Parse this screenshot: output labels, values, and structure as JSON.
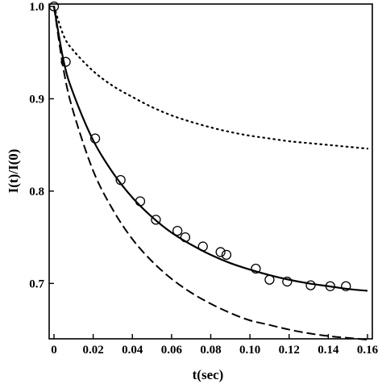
{
  "chart_data": {
    "type": "line",
    "title": "",
    "xlabel": "t(sec)",
    "ylabel": "I(t)/I(0)",
    "xlim": [
      0,
      0.16
    ],
    "ylim": [
      0.64,
      1.0
    ],
    "x_ticks": [
      0,
      0.02,
      0.04,
      0.06,
      0.08,
      0.1,
      0.12,
      0.14,
      0.16
    ],
    "x_tick_labels": [
      "0",
      "0.02",
      "0.04",
      "0.06",
      "0.08",
      "0.10",
      "0.12",
      "0.14",
      "0.16"
    ],
    "y_ticks": [
      0.7,
      0.8,
      0.9,
      1.0
    ],
    "y_tick_labels": [
      "0.7",
      "0.8",
      "0.9",
      "1.0"
    ],
    "grid": false,
    "legend": "none",
    "series": [
      {
        "style": "markers",
        "marker": "open-circle",
        "color": "#000000",
        "x": [
          0.0,
          0.006,
          0.021,
          0.034,
          0.044,
          0.052,
          0.063,
          0.067,
          0.076,
          0.085,
          0.088,
          0.103,
          0.11,
          0.119,
          0.131,
          0.141,
          0.149
        ],
        "y": [
          1.0,
          0.94,
          0.857,
          0.812,
          0.789,
          0.769,
          0.757,
          0.75,
          0.74,
          0.734,
          0.731,
          0.716,
          0.704,
          0.702,
          0.698,
          0.697,
          0.697
        ]
      },
      {
        "style": "solid",
        "color": "#000000",
        "x": [
          0.0,
          0.005,
          0.01,
          0.02,
          0.03,
          0.04,
          0.05,
          0.06,
          0.07,
          0.08,
          0.09,
          0.1,
          0.11,
          0.12,
          0.13,
          0.14,
          0.15,
          0.16
        ],
        "y": [
          1.0,
          0.94,
          0.905,
          0.855,
          0.82,
          0.793,
          0.772,
          0.755,
          0.742,
          0.731,
          0.722,
          0.715,
          0.709,
          0.704,
          0.7,
          0.697,
          0.694,
          0.692
        ]
      },
      {
        "style": "dashed",
        "color": "#000000",
        "x": [
          0.0,
          0.005,
          0.01,
          0.02,
          0.03,
          0.04,
          0.05,
          0.06,
          0.07,
          0.08,
          0.09,
          0.1,
          0.11,
          0.12,
          0.13,
          0.14,
          0.15,
          0.16
        ],
        "y": [
          1.0,
          0.93,
          0.885,
          0.822,
          0.78,
          0.748,
          0.724,
          0.705,
          0.69,
          0.678,
          0.668,
          0.66,
          0.655,
          0.65,
          0.646,
          0.643,
          0.641,
          0.639
        ]
      },
      {
        "style": "dotted",
        "color": "#000000",
        "x": [
          0.0,
          0.005,
          0.01,
          0.02,
          0.03,
          0.04,
          0.05,
          0.06,
          0.07,
          0.08,
          0.09,
          0.1,
          0.11,
          0.12,
          0.13,
          0.14,
          0.15,
          0.16
        ],
        "y": [
          1.0,
          0.968,
          0.952,
          0.93,
          0.914,
          0.902,
          0.891,
          0.882,
          0.875,
          0.869,
          0.864,
          0.86,
          0.857,
          0.854,
          0.852,
          0.85,
          0.848,
          0.846
        ]
      }
    ]
  }
}
